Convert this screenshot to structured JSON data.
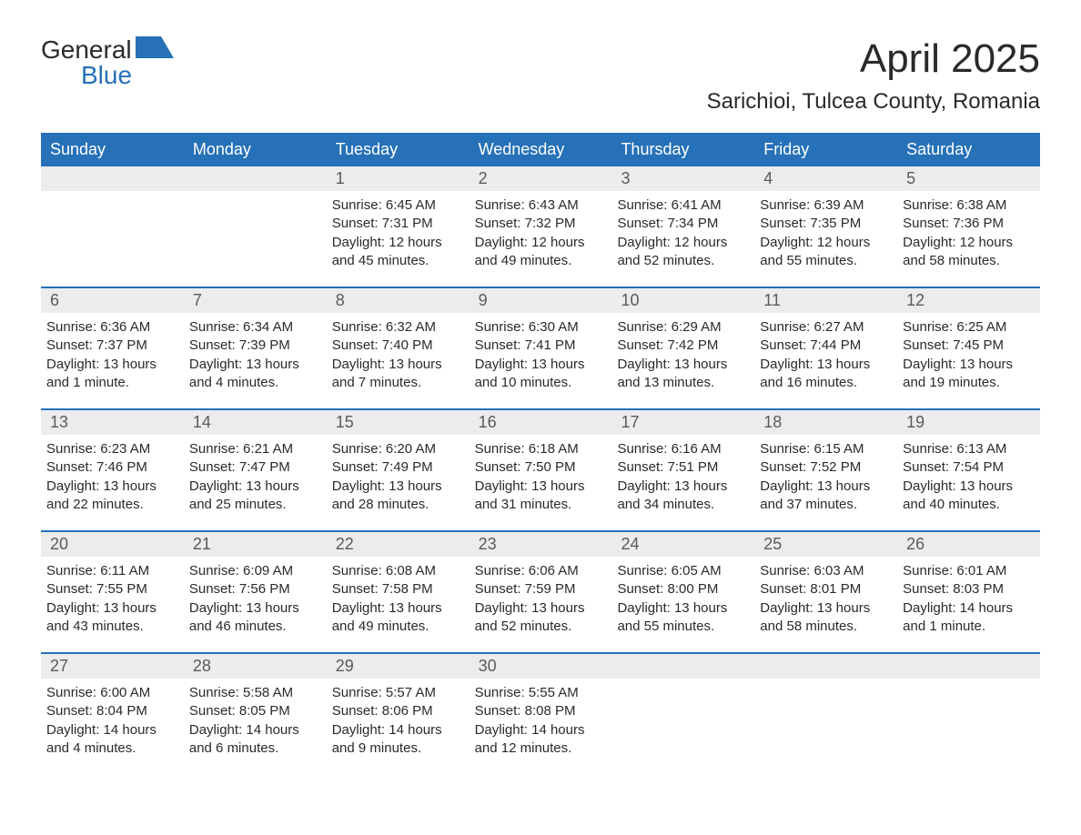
{
  "logo": {
    "text1": "General",
    "text2": "Blue",
    "accent_color": "#2671b8"
  },
  "title": "April 2025",
  "location": "Sarichioi, Tulcea County, Romania",
  "colors": {
    "header_bg": "#2671b8",
    "header_text": "#ffffff",
    "daynum_bg": "#ececec",
    "daynum_text": "#5a5a5a",
    "body_text": "#2a2a2a",
    "week_divider": "#2671b8",
    "background": "#ffffff"
  },
  "typography": {
    "month_title_fontsize": 44,
    "location_fontsize": 24,
    "dow_fontsize": 18,
    "daynum_fontsize": 18,
    "body_fontsize": 15
  },
  "days_of_week": [
    "Sunday",
    "Monday",
    "Tuesday",
    "Wednesday",
    "Thursday",
    "Friday",
    "Saturday"
  ],
  "weeks": [
    [
      {
        "num": "",
        "sunrise": "",
        "sunset": "",
        "daylight": ""
      },
      {
        "num": "",
        "sunrise": "",
        "sunset": "",
        "daylight": ""
      },
      {
        "num": "1",
        "sunrise": "Sunrise: 6:45 AM",
        "sunset": "Sunset: 7:31 PM",
        "daylight": "Daylight: 12 hours and 45 minutes."
      },
      {
        "num": "2",
        "sunrise": "Sunrise: 6:43 AM",
        "sunset": "Sunset: 7:32 PM",
        "daylight": "Daylight: 12 hours and 49 minutes."
      },
      {
        "num": "3",
        "sunrise": "Sunrise: 6:41 AM",
        "sunset": "Sunset: 7:34 PM",
        "daylight": "Daylight: 12 hours and 52 minutes."
      },
      {
        "num": "4",
        "sunrise": "Sunrise: 6:39 AM",
        "sunset": "Sunset: 7:35 PM",
        "daylight": "Daylight: 12 hours and 55 minutes."
      },
      {
        "num": "5",
        "sunrise": "Sunrise: 6:38 AM",
        "sunset": "Sunset: 7:36 PM",
        "daylight": "Daylight: 12 hours and 58 minutes."
      }
    ],
    [
      {
        "num": "6",
        "sunrise": "Sunrise: 6:36 AM",
        "sunset": "Sunset: 7:37 PM",
        "daylight": "Daylight: 13 hours and 1 minute."
      },
      {
        "num": "7",
        "sunrise": "Sunrise: 6:34 AM",
        "sunset": "Sunset: 7:39 PM",
        "daylight": "Daylight: 13 hours and 4 minutes."
      },
      {
        "num": "8",
        "sunrise": "Sunrise: 6:32 AM",
        "sunset": "Sunset: 7:40 PM",
        "daylight": "Daylight: 13 hours and 7 minutes."
      },
      {
        "num": "9",
        "sunrise": "Sunrise: 6:30 AM",
        "sunset": "Sunset: 7:41 PM",
        "daylight": "Daylight: 13 hours and 10 minutes."
      },
      {
        "num": "10",
        "sunrise": "Sunrise: 6:29 AM",
        "sunset": "Sunset: 7:42 PM",
        "daylight": "Daylight: 13 hours and 13 minutes."
      },
      {
        "num": "11",
        "sunrise": "Sunrise: 6:27 AM",
        "sunset": "Sunset: 7:44 PM",
        "daylight": "Daylight: 13 hours and 16 minutes."
      },
      {
        "num": "12",
        "sunrise": "Sunrise: 6:25 AM",
        "sunset": "Sunset: 7:45 PM",
        "daylight": "Daylight: 13 hours and 19 minutes."
      }
    ],
    [
      {
        "num": "13",
        "sunrise": "Sunrise: 6:23 AM",
        "sunset": "Sunset: 7:46 PM",
        "daylight": "Daylight: 13 hours and 22 minutes."
      },
      {
        "num": "14",
        "sunrise": "Sunrise: 6:21 AM",
        "sunset": "Sunset: 7:47 PM",
        "daylight": "Daylight: 13 hours and 25 minutes."
      },
      {
        "num": "15",
        "sunrise": "Sunrise: 6:20 AM",
        "sunset": "Sunset: 7:49 PM",
        "daylight": "Daylight: 13 hours and 28 minutes."
      },
      {
        "num": "16",
        "sunrise": "Sunrise: 6:18 AM",
        "sunset": "Sunset: 7:50 PM",
        "daylight": "Daylight: 13 hours and 31 minutes."
      },
      {
        "num": "17",
        "sunrise": "Sunrise: 6:16 AM",
        "sunset": "Sunset: 7:51 PM",
        "daylight": "Daylight: 13 hours and 34 minutes."
      },
      {
        "num": "18",
        "sunrise": "Sunrise: 6:15 AM",
        "sunset": "Sunset: 7:52 PM",
        "daylight": "Daylight: 13 hours and 37 minutes."
      },
      {
        "num": "19",
        "sunrise": "Sunrise: 6:13 AM",
        "sunset": "Sunset: 7:54 PM",
        "daylight": "Daylight: 13 hours and 40 minutes."
      }
    ],
    [
      {
        "num": "20",
        "sunrise": "Sunrise: 6:11 AM",
        "sunset": "Sunset: 7:55 PM",
        "daylight": "Daylight: 13 hours and 43 minutes."
      },
      {
        "num": "21",
        "sunrise": "Sunrise: 6:09 AM",
        "sunset": "Sunset: 7:56 PM",
        "daylight": "Daylight: 13 hours and 46 minutes."
      },
      {
        "num": "22",
        "sunrise": "Sunrise: 6:08 AM",
        "sunset": "Sunset: 7:58 PM",
        "daylight": "Daylight: 13 hours and 49 minutes."
      },
      {
        "num": "23",
        "sunrise": "Sunrise: 6:06 AM",
        "sunset": "Sunset: 7:59 PM",
        "daylight": "Daylight: 13 hours and 52 minutes."
      },
      {
        "num": "24",
        "sunrise": "Sunrise: 6:05 AM",
        "sunset": "Sunset: 8:00 PM",
        "daylight": "Daylight: 13 hours and 55 minutes."
      },
      {
        "num": "25",
        "sunrise": "Sunrise: 6:03 AM",
        "sunset": "Sunset: 8:01 PM",
        "daylight": "Daylight: 13 hours and 58 minutes."
      },
      {
        "num": "26",
        "sunrise": "Sunrise: 6:01 AM",
        "sunset": "Sunset: 8:03 PM",
        "daylight": "Daylight: 14 hours and 1 minute."
      }
    ],
    [
      {
        "num": "27",
        "sunrise": "Sunrise: 6:00 AM",
        "sunset": "Sunset: 8:04 PM",
        "daylight": "Daylight: 14 hours and 4 minutes."
      },
      {
        "num": "28",
        "sunrise": "Sunrise: 5:58 AM",
        "sunset": "Sunset: 8:05 PM",
        "daylight": "Daylight: 14 hours and 6 minutes."
      },
      {
        "num": "29",
        "sunrise": "Sunrise: 5:57 AM",
        "sunset": "Sunset: 8:06 PM",
        "daylight": "Daylight: 14 hours and 9 minutes."
      },
      {
        "num": "30",
        "sunrise": "Sunrise: 5:55 AM",
        "sunset": "Sunset: 8:08 PM",
        "daylight": "Daylight: 14 hours and 12 minutes."
      },
      {
        "num": "",
        "sunrise": "",
        "sunset": "",
        "daylight": ""
      },
      {
        "num": "",
        "sunrise": "",
        "sunset": "",
        "daylight": ""
      },
      {
        "num": "",
        "sunrise": "",
        "sunset": "",
        "daylight": ""
      }
    ]
  ]
}
